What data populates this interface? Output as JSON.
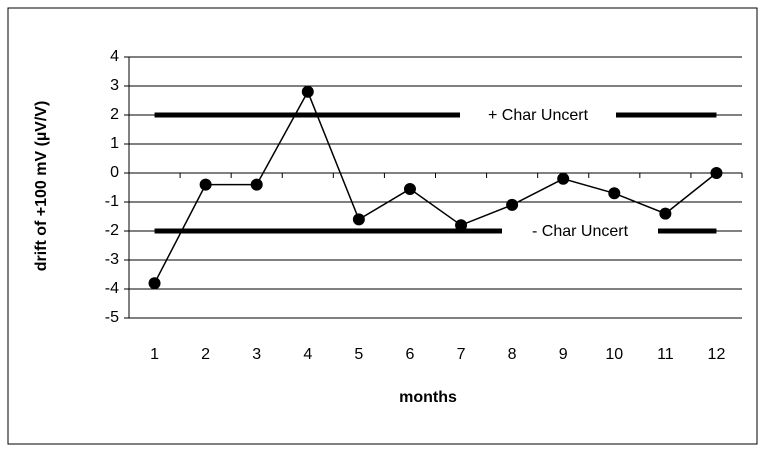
{
  "chart_data": {
    "type": "line",
    "categories": [
      "1",
      "2",
      "3",
      "4",
      "5",
      "6",
      "7",
      "8",
      "9",
      "10",
      "11",
      "12"
    ],
    "series": [
      {
        "color": "#000000",
        "values": [
          -3.8,
          -0.4,
          -0.4,
          2.8,
          -1.6,
          -0.55,
          -1.8,
          -1.1,
          -0.2,
          -0.7,
          -1.4,
          0
        ]
      }
    ],
    "ylim": [
      -5,
      4
    ],
    "yticks": [
      -5,
      -4,
      -3,
      -2,
      -1,
      0,
      1,
      2,
      3,
      4
    ],
    "grid": true,
    "xlabel": "months",
    "ylabel": "drift of +100 mV (µV/V)",
    "reference_lines": [
      {
        "label": "+ Char Uncert",
        "value": 2
      },
      {
        "label": "- Char Uncert",
        "value": -2
      }
    ]
  }
}
